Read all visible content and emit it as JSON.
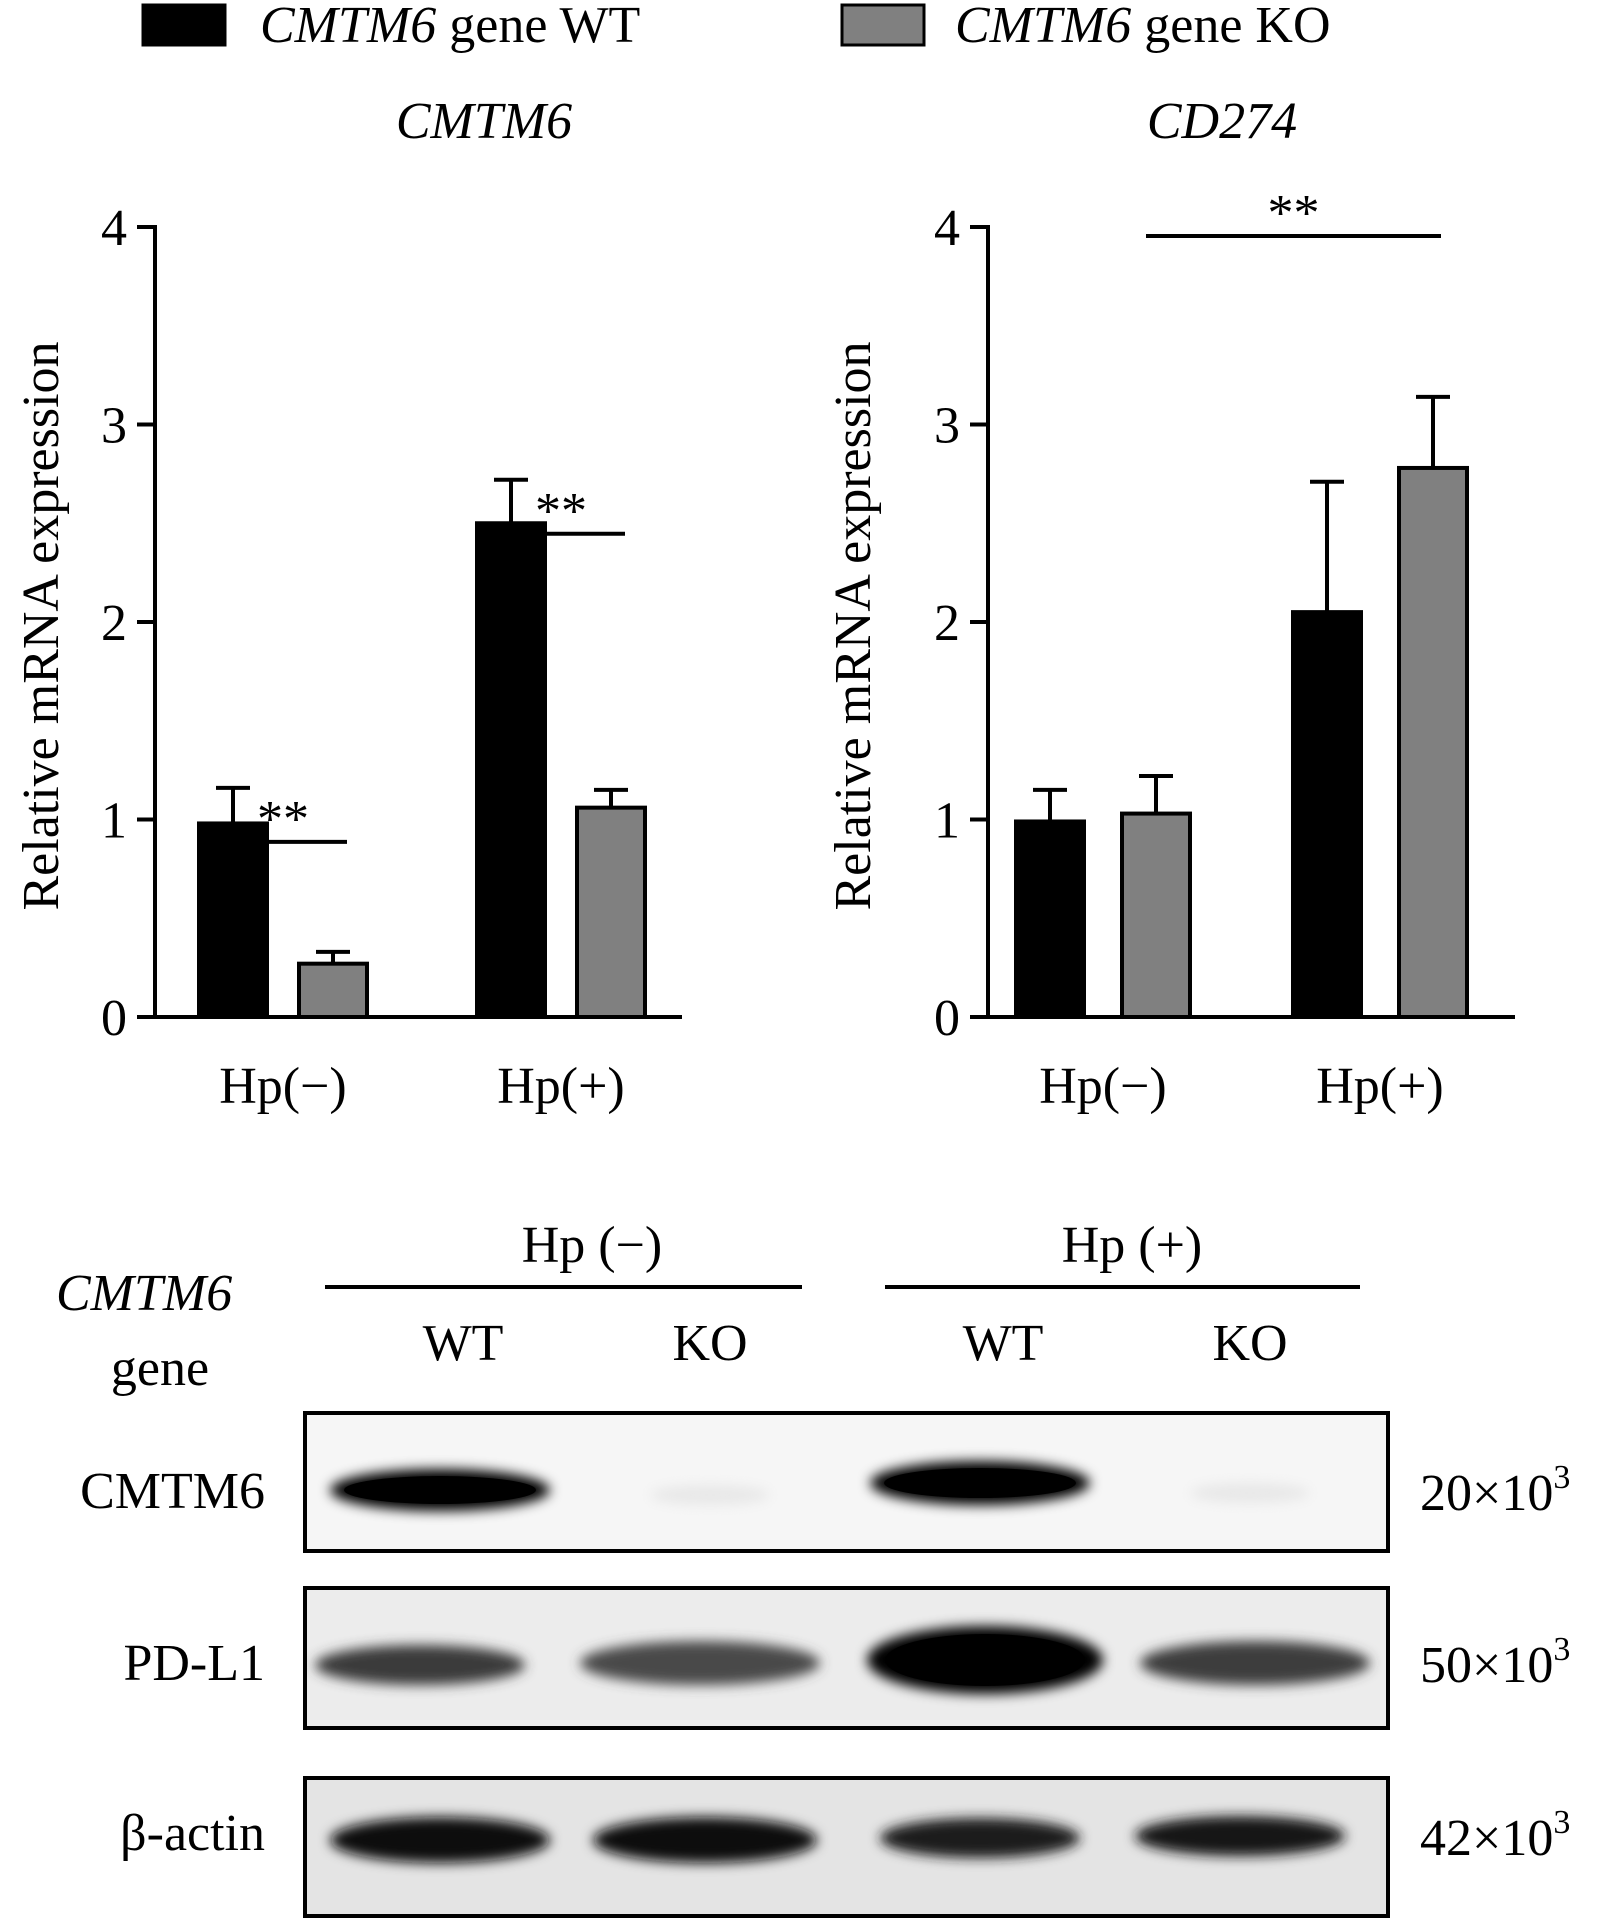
{
  "legend": [
    {
      "gene": "CMTM6",
      "label": " gene WT",
      "color": "#000000"
    },
    {
      "gene": "CMTM6",
      "label": " gene KO",
      "color": "#808080"
    }
  ],
  "chart_data": [
    {
      "type": "bar",
      "title": "CMTM6",
      "ylabel": "Relative mRNA expression",
      "xlabel": "",
      "categories": [
        "Hp(−)",
        "Hp(+)"
      ],
      "ylim": [
        0,
        4
      ],
      "yticks": [
        "0",
        "1",
        "2",
        "3",
        "4"
      ],
      "series": [
        {
          "name": "CMTM6 gene WT",
          "values": [
            0.98,
            2.5
          ],
          "errors": [
            0.18,
            0.22
          ],
          "color": "#000000"
        },
        {
          "name": "CMTM6 gene KO",
          "values": [
            0.27,
            1.06
          ],
          "errors": [
            0.06,
            0.09
          ],
          "color": "#808080"
        }
      ],
      "significance": [
        {
          "label": "**",
          "between": "WT vs KO",
          "category": "Hp(−)"
        },
        {
          "label": "**",
          "between": "WT vs KO",
          "category": "Hp(+)"
        }
      ]
    },
    {
      "type": "bar",
      "title": "CD274",
      "ylabel": "Relative mRNA expression",
      "xlabel": "",
      "categories": [
        "Hp(−)",
        "Hp(+)"
      ],
      "ylim": [
        0,
        4
      ],
      "yticks": [
        "0",
        "1",
        "2",
        "3",
        "4"
      ],
      "series": [
        {
          "name": "CMTM6 gene WT",
          "values": [
            0.99,
            2.05
          ],
          "errors": [
            0.16,
            0.66
          ],
          "color": "#000000"
        },
        {
          "name": "CMTM6 gene KO",
          "values": [
            1.03,
            2.78
          ],
          "errors": [
            0.19,
            0.36
          ],
          "color": "#808080"
        }
      ],
      "significance": [
        {
          "label": "**",
          "between": "Hp(−) KO vs Hp(+) KO"
        }
      ]
    }
  ],
  "western_blot": {
    "gene_label_italic": "CMTM6",
    "gene_label": "gene",
    "groups": [
      "Hp (−)",
      "Hp (+)"
    ],
    "lanes": [
      "WT",
      "KO",
      "WT",
      "KO"
    ],
    "rows": [
      {
        "protein": "CMTM6",
        "mw": "20×10",
        "mw_exp": "3",
        "band_intensity": [
          0.95,
          0.02,
          0.92,
          0.02
        ]
      },
      {
        "protein": "PD-L1",
        "mw": "50×10",
        "mw_exp": "3",
        "band_intensity": [
          0.45,
          0.4,
          1.0,
          0.45
        ]
      },
      {
        "protein": "β-actin",
        "mw": "42×10",
        "mw_exp": "3",
        "band_intensity": [
          0.8,
          0.8,
          0.75,
          0.8
        ]
      }
    ]
  }
}
